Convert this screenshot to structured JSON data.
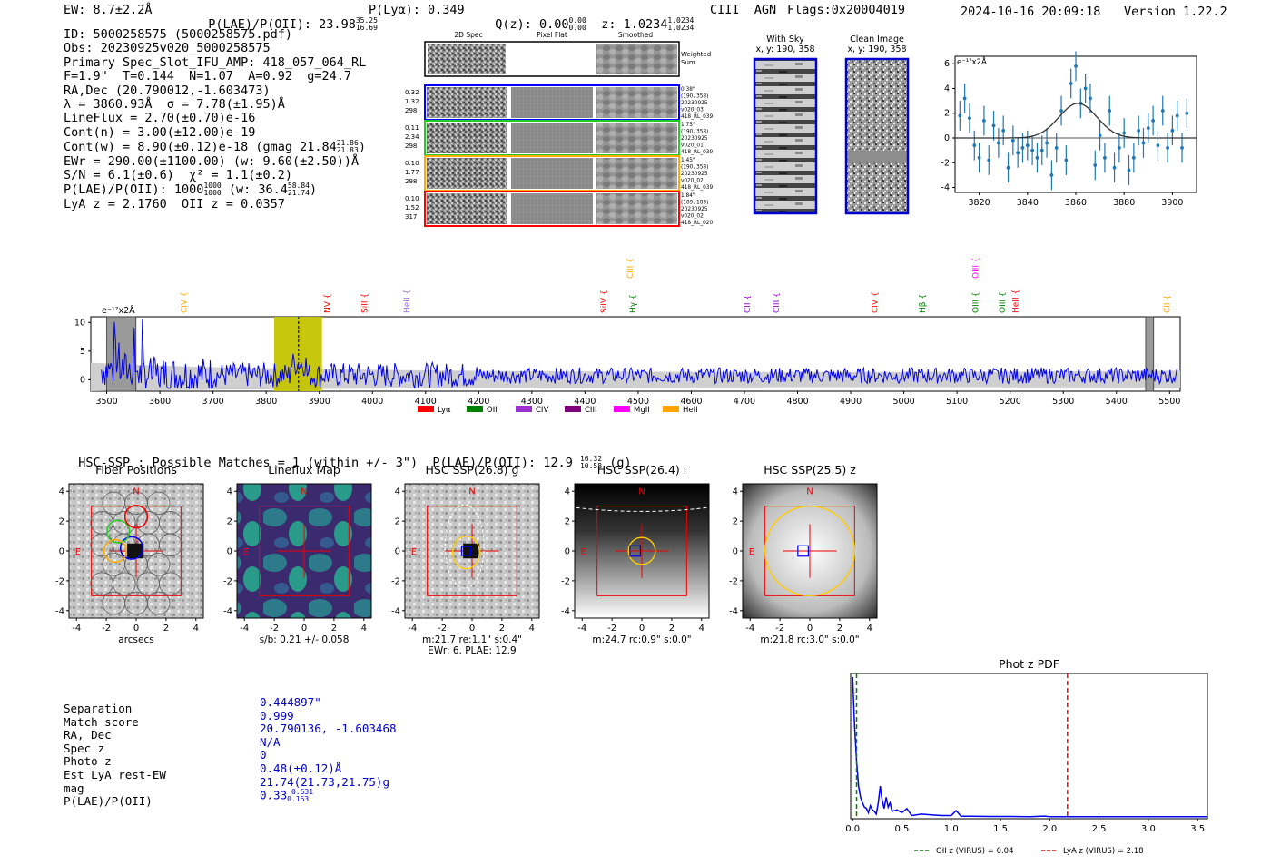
{
  "header": {
    "ew": "EW: 8.7±2.2Å",
    "plae_label": "P(LAE)/P(OII): 23.98",
    "plae_hi": "35.25",
    "plae_lo": "16.69",
    "plya": "P(Lyα): 0.349",
    "qz_label": "Q(z): 0.00",
    "qz_hi": "0.00",
    "qz_lo": "0.00",
    "z_label": "z: 1.0234",
    "z_hi": "1.0234",
    "z_lo": "1.0234",
    "line_tags": "CIII  AGN",
    "flags": "Flags:0x20004019",
    "timestamp": "2024-10-16 20:09:18",
    "version": "Version 1.22.2"
  },
  "info": {
    "id": "ID: 5000258575 (5000258575.pdf)",
    "obs": "Obs: 20230925v020_5000258575",
    "primary": "Primary Spec_Slot_IFU_AMP: 418_057_064_RL",
    "fwhm": "F=1.9\"  T=0.144  N=1.07  A=0.92  g=24.7",
    "radec": "RA,Dec (20.790012,-1.603473)",
    "lambda": "λ = 3860.93Å  σ = 7.78(±1.95)Å",
    "lineflux": "LineFlux = 2.70(±0.70)e-16",
    "contn": "Cont(n) = 3.00(±12.00)e-19",
    "contw": "Cont(w) = 8.90(±0.12)e-18 (gmag 21.84",
    "contw_hi": "21.86",
    "contw_lo": "21.83",
    "ewr": "EWr = 290.00(±1100.00) (w: 9.60(±2.50))Å",
    "sn": "S/N = 6.1(±0.6)  χ² = 1.1(±0.2)",
    "plae": "P(LAE)/P(OII): 1000",
    "plae_hi": "1000",
    "plae_lo": "1000",
    "plae_w": "(w: 36.4",
    "plae_w_hi": "58.84",
    "plae_w_lo": "21.74",
    "lya_z": "LyA z = 2.1760  OII z = 0.0357"
  },
  "fiber_stamps": {
    "headers": [
      "2D Spec",
      "Pixel Flat",
      "Smoothed"
    ],
    "weighted_sum_label": "Weighted\nSum",
    "rows": [
      {
        "left": [
          "0.32",
          "1.32",
          "298"
        ],
        "right": [
          "0.38\"",
          "(190, 358)",
          "20230925",
          "v020_03",
          "418_RL_039"
        ],
        "color": "#0000ff"
      },
      {
        "left": [
          "0.11",
          "2.34",
          "298"
        ],
        "right": [
          "1.75\"",
          "(190, 358)",
          "20230925",
          "v020_01",
          "418_RL_039"
        ],
        "color": "#22cc22"
      },
      {
        "left": [
          "0.10",
          "1.77",
          "298"
        ],
        "right": [
          "1.45\"",
          "(190, 358)",
          "20230925",
          "v020_02",
          "418_RL_039"
        ],
        "color": "#ffaa00"
      },
      {
        "left": [
          "0.10",
          "1.52",
          "317"
        ],
        "right": [
          "1.84\"",
          "(189, 183)",
          "20230925",
          "v020_02",
          "418_RL_020"
        ],
        "color": "#ff0000"
      }
    ]
  },
  "ccd_images": {
    "with_sky": {
      "title": "With Sky",
      "coords": "x, y: 190, 358"
    },
    "clean": {
      "title": "Clean Image",
      "coords": "x, y: 190, 358"
    }
  },
  "line_fit_chart": {
    "type": "scatter",
    "unit_label": "e⁻¹⁷x2Å",
    "xlim": [
      3810,
      3910
    ],
    "ylim": [
      -4.4,
      6.6
    ],
    "xticks": [
      3820,
      3840,
      3860,
      3880,
      3900
    ],
    "yticks": [
      -4,
      -2,
      0,
      2,
      4,
      6
    ],
    "x": [
      3812,
      3814,
      3816,
      3818,
      3820,
      3822,
      3824,
      3826,
      3828,
      3830,
      3832,
      3834,
      3836,
      3838,
      3840,
      3842,
      3844,
      3846,
      3848,
      3850,
      3852,
      3854,
      3856,
      3858,
      3860,
      3862,
      3864,
      3866,
      3868,
      3870,
      3872,
      3874,
      3876,
      3878,
      3880,
      3882,
      3884,
      3886,
      3888,
      3890,
      3892,
      3894,
      3896,
      3898,
      3900,
      3902,
      3904,
      3906
    ],
    "y": [
      1.8,
      3.2,
      1.6,
      -0.6,
      -1.6,
      1.4,
      -1.8,
      1.0,
      -0.4,
      0.6,
      -2.4,
      -0.2,
      -1.2,
      -0.8,
      -0.6,
      -1.0,
      -1.6,
      -1.0,
      -0.4,
      -3.0,
      -0.8,
      2.2,
      -1.8,
      4.4,
      5.8,
      2.8,
      4.0,
      3.2,
      -2.2,
      0.2,
      -1.6,
      2.2,
      -2.4,
      -0.8,
      0.4,
      -2.6,
      -1.6,
      0.6,
      -0.4,
      0.8,
      1.4,
      -0.6,
      2.2,
      -0.8,
      0.6,
      1.8,
      -0.8,
      2.0
    ],
    "err": [
      1.2,
      1.2,
      1.2,
      1.2,
      1.2,
      1.2,
      1.2,
      1.2,
      1.2,
      1.2,
      1.2,
      1.2,
      1.2,
      1.2,
      1.2,
      1.2,
      1.2,
      1.2,
      1.2,
      1.2,
      1.2,
      1.2,
      1.2,
      1.2,
      1.2,
      1.2,
      1.2,
      1.2,
      1.2,
      1.2,
      1.2,
      1.2,
      1.2,
      1.2,
      1.2,
      1.2,
      1.2,
      1.2,
      1.2,
      1.2,
      1.2,
      1.2,
      1.2,
      1.2,
      1.2,
      1.2,
      1.2,
      1.2
    ],
    "model": {
      "center": 3860.9,
      "sigma": 7.8,
      "amplitude": 2.8,
      "baseline": 0.0
    }
  },
  "spectrum_chart": {
    "type": "line",
    "unit_label": "e⁻¹⁷x2Å",
    "xlim": [
      3470,
      5520
    ],
    "ylim": [
      -2,
      11
    ],
    "xticks": [
      3500,
      3600,
      3700,
      3800,
      3900,
      4000,
      4100,
      4200,
      4300,
      4400,
      4500,
      4600,
      4700,
      4800,
      4900,
      5000,
      5100,
      5200,
      5300,
      5400,
      5500
    ],
    "yticks": [
      0,
      5,
      10
    ],
    "highlight_band": [
      3815,
      3905
    ],
    "marked_wavelength": 3860.9,
    "edge_masks": [
      [
        3500,
        3555
      ],
      [
        5455,
        5470
      ]
    ],
    "lines": [
      {
        "name": "CIV",
        "wave": 3650,
        "color": "#ffa500",
        "row": "low"
      },
      {
        "name": "NV",
        "wave": 3920,
        "color": "#ff0000",
        "row": "low"
      },
      {
        "name": "SiII",
        "wave": 3990,
        "color": "#ff0000",
        "row": "low"
      },
      {
        "name": "HeII",
        "wave": 4070,
        "color": "#9370db",
        "row": "low"
      },
      {
        "name": "SiIV",
        "wave": 4440,
        "color": "#ff0000",
        "row": "low"
      },
      {
        "name": "CIII",
        "wave": 4490,
        "color": "#ffa500",
        "row": "high"
      },
      {
        "name": "Hγ",
        "wave": 4495,
        "color": "#008000",
        "row": "low"
      },
      {
        "name": "CII",
        "wave": 4710,
        "color": "#9400d3",
        "row": "low"
      },
      {
        "name": "CIII",
        "wave": 4765,
        "color": "#9400d3",
        "row": "low"
      },
      {
        "name": "CIV",
        "wave": 4950,
        "color": "#ff0000",
        "row": "low"
      },
      {
        "name": "Hβ",
        "wave": 5040,
        "color": "#008000",
        "row": "low"
      },
      {
        "name": "OIII",
        "wave": 5140,
        "color": "#ff00ff",
        "row": "high"
      },
      {
        "name": "OIII",
        "wave": 5140,
        "color": "#008000",
        "row": "low"
      },
      {
        "name": "OIII",
        "wave": 5190,
        "color": "#008000",
        "row": "low"
      },
      {
        "name": "HeII",
        "wave": 5215,
        "color": "#ff0000",
        "row": "low"
      },
      {
        "name": "CII",
        "wave": 5500,
        "color": "#ffa500",
        "row": "low"
      }
    ],
    "legend": [
      {
        "name": "Lyα",
        "color": "#ff0000"
      },
      {
        "name": "OII",
        "color": "#008000"
      },
      {
        "name": "CIV",
        "color": "#9932cc"
      },
      {
        "name": "CIII",
        "color": "#800080"
      },
      {
        "name": "MgII",
        "color": "#ff00ff"
      },
      {
        "name": "HeII",
        "color": "#ffa500"
      }
    ]
  },
  "hsc": {
    "title": "HSC-SSP : Possible Matches = 1 (within +/- 3\")  P(LAE)/P(OII): 12.9",
    "title_hi": "16.32",
    "title_lo": "10.58",
    "title_band": "(g)"
  },
  "cutouts": [
    {
      "title": "Fiber Positions",
      "caption": [
        "arcsecs"
      ]
    },
    {
      "title": "Lineflux Map",
      "caption": [
        "s/b: 0.21 +/- 0.058"
      ]
    },
    {
      "title": "HSC SSP(26.8) g",
      "caption": [
        "m:21.7  re:1.1\"  s:0.4\"",
        "EWr: 6. PLAE: 12.9"
      ]
    },
    {
      "title": "HSC SSP(26.4) i",
      "caption": [
        "m:24.7 rc:0.9\"  s:0.0\""
      ]
    },
    {
      "title": "HSC SSP(25.5) z",
      "caption": [
        "m:21.8 rc:3.0\"  s:0.0\""
      ]
    }
  ],
  "cutout_axes": {
    "ticks": [
      -4,
      -2,
      0,
      2,
      4
    ],
    "compass_n": "N",
    "compass_e": "E"
  },
  "match_table": {
    "rows": [
      {
        "label": "Separation",
        "value": "0.444897\""
      },
      {
        "label": "Match score",
        "value": "0.999"
      },
      {
        "label": "RA, Dec",
        "value": "20.790136, -1.603468"
      },
      {
        "label": "Spec z",
        "value": "N/A"
      },
      {
        "label": "Photo z",
        "value": "0"
      },
      {
        "label": "Est LyA rest-EW",
        "value": "0.48(±0.12)Å"
      },
      {
        "label": "mag",
        "value": "21.74(21.73,21.75)g"
      },
      {
        "label": "P(LAE)/P(OII)",
        "value": "0.33",
        "hi": "0.631",
        "lo": "0.163"
      }
    ]
  },
  "photz_chart": {
    "type": "line",
    "title": "Phot z PDF",
    "xlim": [
      -0.02,
      3.6
    ],
    "xticks": [
      0.0,
      0.5,
      1.0,
      1.5,
      2.0,
      2.5,
      3.0,
      3.5
    ],
    "x": [
      0.0,
      0.02,
      0.04,
      0.06,
      0.08,
      0.1,
      0.12,
      0.14,
      0.16,
      0.18,
      0.2,
      0.22,
      0.24,
      0.26,
      0.28,
      0.3,
      0.32,
      0.34,
      0.36,
      0.38,
      0.4,
      0.45,
      0.5,
      0.55,
      0.6,
      0.7,
      0.8,
      0.9,
      1.0,
      1.05,
      1.1,
      1.2,
      1.4,
      1.6,
      1.8,
      1.95,
      2.0,
      2.2,
      2.4,
      2.6,
      2.8,
      3.0,
      3.2,
      3.4,
      3.6
    ],
    "y": [
      1.0,
      0.65,
      0.4,
      0.22,
      0.14,
      0.1,
      0.07,
      0.06,
      0.03,
      0.08,
      0.05,
      0.04,
      0.02,
      0.1,
      0.22,
      0.12,
      0.06,
      0.14,
      0.07,
      0.1,
      0.04,
      0.05,
      0.03,
      0.06,
      0.01,
      0.02,
      0.015,
      0.01,
      0.01,
      0.045,
      0.005,
      0.005,
      0.003,
      0.003,
      0.002,
      0.006,
      0.002,
      0.002,
      0.001,
      0.001,
      0.001,
      0.001,
      0.001,
      0.001,
      0.001
    ],
    "oii_z": 0.04,
    "lya_z": 2.18,
    "legend": [
      {
        "name": "OII z (VIRUS) = 0.04",
        "color": "#008000"
      },
      {
        "name": "LyA z (VIRUS) = 2.18",
        "color": "#ff0000"
      }
    ]
  }
}
